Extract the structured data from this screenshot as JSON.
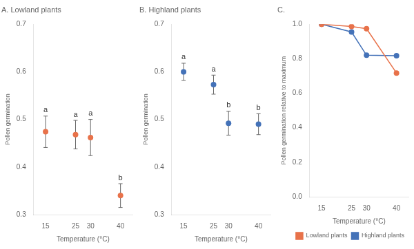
{
  "chart_data": [
    {
      "type": "scatter",
      "title": "A. Lowland plants",
      "xlabel": "Temperature (°C)",
      "ylabel": "Pollen germination",
      "x": [
        15,
        25,
        30,
        40
      ],
      "values": [
        0.474,
        0.468,
        0.462,
        0.34
      ],
      "errors": [
        0.033,
        0.03,
        0.038,
        0.025
      ],
      "annotations": [
        "a",
        "a",
        "a",
        "b"
      ],
      "color": "#E8724A",
      "xlim": [
        11,
        44
      ],
      "xticks": [
        15,
        25,
        30,
        40
      ],
      "ylim": [
        0.3,
        0.7
      ],
      "yticks": [
        0.3,
        0.4,
        0.5,
        0.6,
        0.7
      ],
      "grid": false
    },
    {
      "type": "scatter",
      "title": "B. Highland plants",
      "xlabel": "Temperature (°C)",
      "ylabel": "Pollen germination",
      "x": [
        15,
        25,
        30,
        40
      ],
      "values": [
        0.6,
        0.573,
        0.492,
        0.49
      ],
      "errors": [
        0.018,
        0.02,
        0.025,
        0.022
      ],
      "annotations": [
        "a",
        "a",
        "b",
        "b"
      ],
      "color": "#4472B8",
      "xlim": [
        11,
        44
      ],
      "xticks": [
        15,
        25,
        30,
        40
      ],
      "ylim": [
        0.3,
        0.7
      ],
      "yticks": [
        0.3,
        0.4,
        0.5,
        0.6,
        0.7
      ],
      "grid": false
    },
    {
      "type": "line",
      "title": "C.",
      "xlabel": "Temperature (°C)",
      "ylabel": "Pollen germination relative to maximum",
      "x": [
        15,
        25,
        30,
        40
      ],
      "series": [
        {
          "name": "Lowland plants",
          "color": "#E8724A",
          "values": [
            1.0,
            0.987,
            0.974,
            0.717
          ]
        },
        {
          "name": "Highland plants",
          "color": "#4472B8",
          "values": [
            1.0,
            0.955,
            0.82,
            0.817
          ]
        }
      ],
      "xlim": [
        11,
        44
      ],
      "xticks": [
        15,
        25,
        30,
        40
      ],
      "ylim": [
        0.0,
        1.0
      ],
      "yticks": [
        {
          "value": 0,
          "label": "0.0"
        },
        0.2,
        0.4,
        0.6,
        0.8,
        {
          "value": 1,
          "label": "1.0"
        }
      ],
      "legend": "lower right",
      "grid": false
    }
  ]
}
